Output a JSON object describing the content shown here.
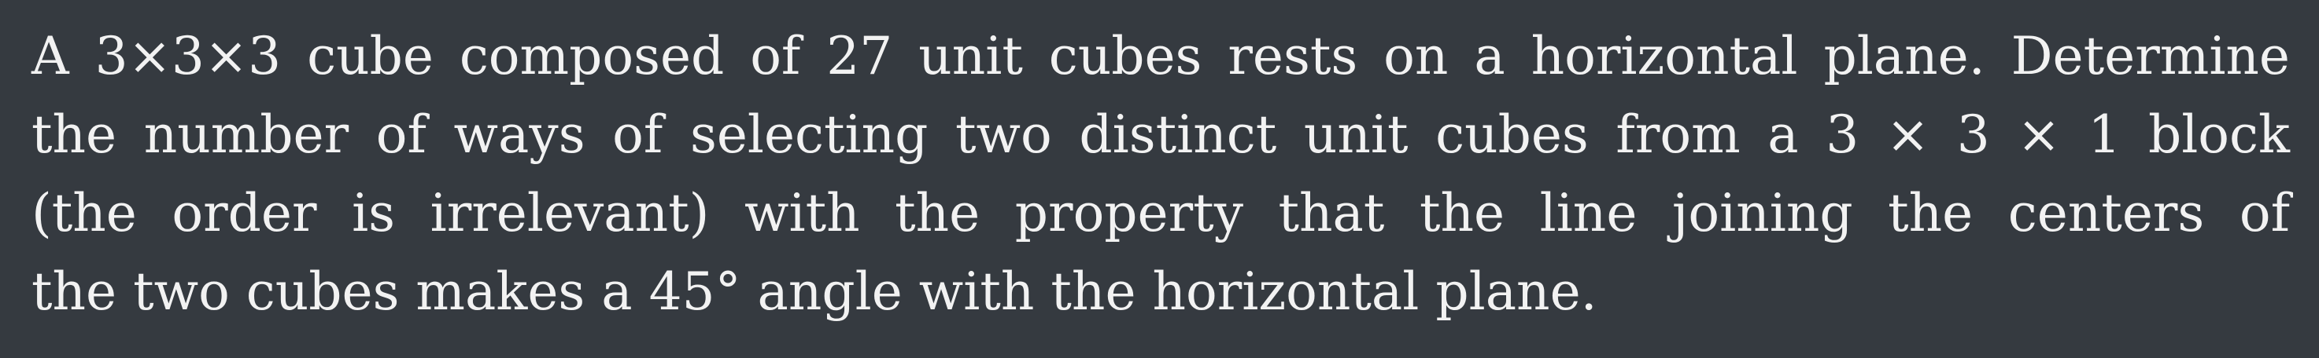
{
  "problem": {
    "lines": [
      "A 3×3×3 cube composed of 27 unit cubes rests on a horizontal plane. Determine",
      "the number of ways of selecting two distinct unit cubes from a 3 × 3 × 1 block",
      "(the order is irrelevant) with the property that the line joining the centers of",
      "the two cubes makes a 45° angle with the horizontal plane."
    ]
  }
}
